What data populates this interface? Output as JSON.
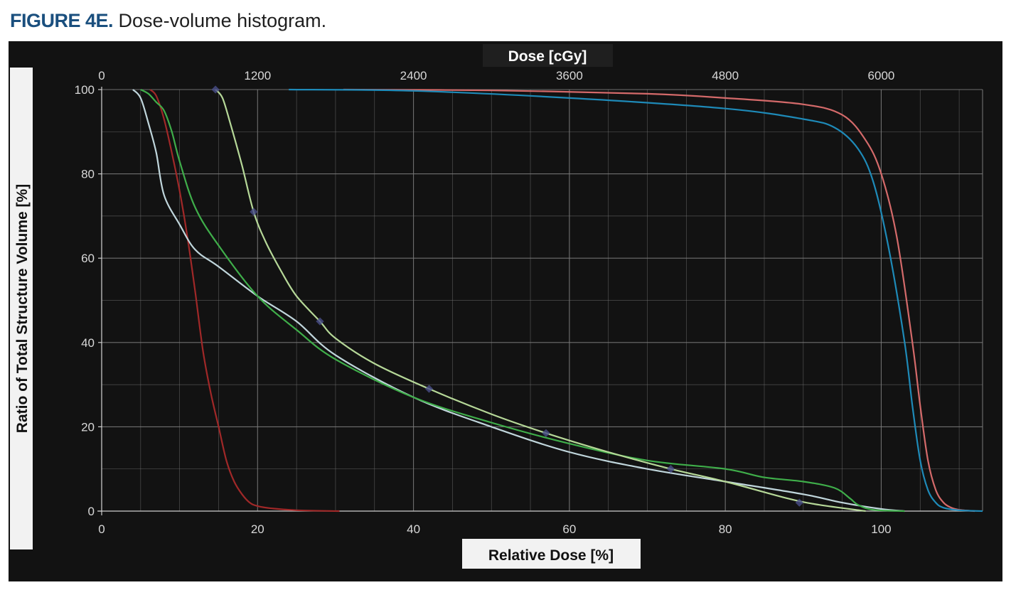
{
  "figure": {
    "label": "FIGURE 4E.",
    "caption": "Dose-volume histogram."
  },
  "colors": {
    "background": "#121212",
    "grid": "#7a7a7a",
    "axis_text": "#d8d8d8",
    "label_box": "#1f1f1f",
    "caption_label": "#1a4f7e"
  },
  "chart_data": {
    "type": "line",
    "title": "",
    "xlabel": "Relative Dose [%]",
    "ylabel": "Ratio of Total Structure Volume [%]",
    "x2label": "Dose [cGy]",
    "xlim": [
      0,
      113
    ],
    "ylim": [
      0,
      100
    ],
    "x_ticks": [
      0,
      20,
      40,
      60,
      80,
      100
    ],
    "x2_ticks": [
      "0",
      "1200",
      "2400",
      "3600",
      "4800",
      "6000"
    ],
    "x2_tick_positions_relative_dose": [
      0,
      20,
      40,
      60,
      80,
      100
    ],
    "y_ticks": [
      0,
      20,
      40,
      60,
      80,
      100
    ],
    "grid": true,
    "legend": "none",
    "series": [
      {
        "color": "#d46a6a",
        "points": [
          [
            31,
            100
          ],
          [
            50,
            99.8
          ],
          [
            70,
            99
          ],
          [
            80,
            98
          ],
          [
            90,
            96.5
          ],
          [
            95,
            94
          ],
          [
            98,
            88
          ],
          [
            100,
            80
          ],
          [
            102,
            65
          ],
          [
            104,
            40
          ],
          [
            105,
            25
          ],
          [
            106,
            12
          ],
          [
            107,
            5
          ],
          [
            108,
            2
          ],
          [
            109,
            0.8
          ],
          [
            110,
            0.3
          ],
          [
            112,
            0
          ]
        ]
      },
      {
        "color": "#1e8ab8",
        "points": [
          [
            24,
            100
          ],
          [
            40,
            99.7
          ],
          [
            60,
            98
          ],
          [
            80,
            95.5
          ],
          [
            90,
            93
          ],
          [
            94,
            91
          ],
          [
            97,
            86
          ],
          [
            99,
            78
          ],
          [
            101,
            62
          ],
          [
            103,
            40
          ],
          [
            104,
            25
          ],
          [
            105,
            12
          ],
          [
            106,
            5
          ],
          [
            107,
            2
          ],
          [
            108,
            0.8
          ],
          [
            110,
            0.2
          ],
          [
            113,
            0
          ]
        ]
      },
      {
        "color": "#a02828",
        "points": [
          [
            6.2,
            100
          ],
          [
            7,
            98.5
          ],
          [
            8,
            93
          ],
          [
            9,
            85
          ],
          [
            10,
            76
          ],
          [
            11,
            65
          ],
          [
            12,
            52
          ],
          [
            13,
            38
          ],
          [
            14,
            28
          ],
          [
            15,
            20
          ],
          [
            16,
            12
          ],
          [
            17,
            7
          ],
          [
            18,
            4
          ],
          [
            19,
            2
          ],
          [
            20,
            1.2
          ],
          [
            22,
            0.6
          ],
          [
            25,
            0.2
          ],
          [
            30.5,
            0
          ]
        ]
      },
      {
        "color": "#c0d6dc",
        "points": [
          [
            4,
            100
          ],
          [
            5,
            98
          ],
          [
            6,
            92
          ],
          [
            7,
            85
          ],
          [
            8,
            75
          ],
          [
            10,
            68
          ],
          [
            12,
            62
          ],
          [
            15,
            58
          ],
          [
            20,
            51
          ],
          [
            25,
            45
          ],
          [
            30,
            37
          ],
          [
            40,
            27
          ],
          [
            50,
            20
          ],
          [
            60,
            14
          ],
          [
            70,
            10
          ],
          [
            80,
            7
          ],
          [
            90,
            4
          ],
          [
            95,
            2
          ],
          [
            100,
            0.5
          ],
          [
            103,
            0
          ]
        ]
      },
      {
        "color": "#3fae4a",
        "points": [
          [
            5,
            100
          ],
          [
            6,
            99
          ],
          [
            7,
            97
          ],
          [
            8,
            95
          ],
          [
            9,
            90
          ],
          [
            10,
            83
          ],
          [
            12,
            72
          ],
          [
            15,
            63
          ],
          [
            20,
            51
          ],
          [
            25,
            43
          ],
          [
            30,
            36
          ],
          [
            40,
            27
          ],
          [
            50,
            21
          ],
          [
            60,
            16
          ],
          [
            70,
            12
          ],
          [
            80,
            10
          ],
          [
            85,
            8
          ],
          [
            90,
            7
          ],
          [
            94,
            5.5
          ],
          [
            96,
            3
          ],
          [
            97,
            1.5
          ],
          [
            99,
            0.3
          ],
          [
            103,
            0
          ]
        ]
      },
      {
        "color": "#b6d898",
        "points": [
          [
            14.6,
            100
          ],
          [
            15.5,
            98
          ],
          [
            16.5,
            92
          ],
          [
            18,
            82
          ],
          [
            19.5,
            71
          ],
          [
            21,
            64
          ],
          [
            23,
            57
          ],
          [
            25,
            51
          ],
          [
            28,
            45
          ],
          [
            30,
            41
          ],
          [
            35,
            35
          ],
          [
            42,
            29
          ],
          [
            50,
            23
          ],
          [
            57,
            18.5
          ],
          [
            65,
            14
          ],
          [
            73,
            10
          ],
          [
            80,
            7
          ],
          [
            88,
            3
          ],
          [
            92,
            1.5
          ],
          [
            98,
            0
          ]
        ]
      }
    ],
    "markers": [
      [
        14.6,
        100
      ],
      [
        19.5,
        71
      ],
      [
        28,
        45
      ],
      [
        42,
        29
      ],
      [
        57,
        18.5
      ],
      [
        73,
        10
      ],
      [
        89.5,
        2
      ]
    ]
  }
}
